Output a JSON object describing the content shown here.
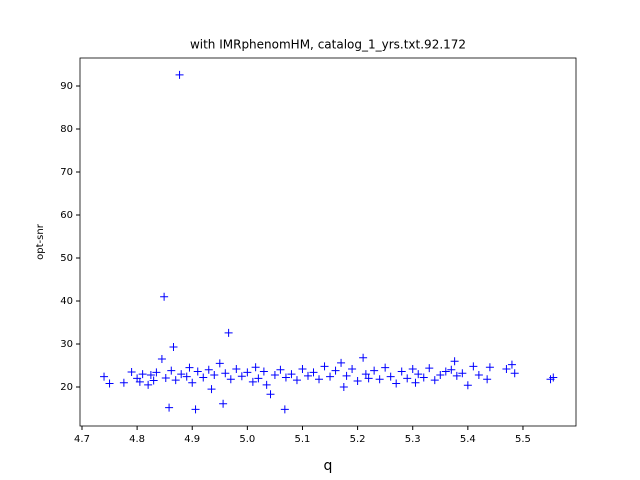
{
  "chart_data": {
    "type": "scatter",
    "title": "with IMRphenomHM, catalog_1_yrs.txt.92.172",
    "x_label": "q",
    "y_label": "opt-snr",
    "color": "#0000ff",
    "marker": "+",
    "x": [
      4.74,
      4.75,
      4.776,
      4.79,
      4.8,
      4.805,
      4.81,
      4.82,
      4.825,
      4.83,
      4.835,
      4.845,
      4.849,
      4.852,
      4.858,
      4.862,
      4.866,
      4.87,
      4.877,
      4.88,
      4.89,
      4.895,
      4.9,
      4.906,
      4.91,
      4.92,
      4.93,
      4.935,
      4.94,
      4.95,
      4.956,
      4.96,
      4.966,
      4.97,
      4.98,
      4.99,
      5.0,
      5.01,
      5.015,
      5.02,
      5.03,
      5.035,
      5.042,
      5.05,
      5.06,
      5.068,
      5.07,
      5.08,
      5.09,
      5.1,
      5.11,
      5.12,
      5.13,
      5.14,
      5.15,
      5.16,
      5.17,
      5.175,
      5.18,
      5.19,
      5.2,
      5.21,
      5.215,
      5.22,
      5.23,
      5.24,
      5.25,
      5.26,
      5.27,
      5.28,
      5.29,
      5.3,
      5.305,
      5.31,
      5.32,
      5.33,
      5.34,
      5.35,
      5.36,
      5.37,
      5.376,
      5.38,
      5.39,
      5.4,
      5.41,
      5.42,
      5.435,
      5.44,
      5.47,
      5.48,
      5.485,
      5.55,
      5.555
    ],
    "values": [
      22.4,
      20.8,
      21.0,
      23.5,
      22.0,
      21.2,
      23.0,
      20.5,
      22.8,
      21.5,
      23.4,
      26.5,
      41.0,
      22.1,
      15.2,
      23.8,
      29.3,
      21.6,
      92.6,
      23.0,
      22.4,
      24.5,
      21.0,
      14.8,
      23.6,
      22.2,
      24.0,
      19.5,
      22.8,
      25.5,
      16.1,
      23.2,
      32.6,
      21.8,
      24.2,
      22.5,
      23.4,
      21.2,
      24.6,
      22.0,
      23.6,
      20.5,
      18.3,
      22.8,
      24.0,
      14.8,
      22.2,
      23.0,
      21.6,
      24.2,
      22.6,
      23.4,
      21.8,
      24.8,
      22.4,
      23.8,
      25.6,
      20.0,
      22.6,
      24.2,
      21.4,
      26.8,
      23.0,
      22.0,
      23.8,
      21.8,
      24.5,
      22.4,
      20.8,
      23.6,
      22.0,
      24.2,
      21.0,
      23.0,
      22.2,
      24.4,
      21.6,
      22.8,
      23.6,
      24.0,
      26.0,
      22.6,
      23.2,
      20.4,
      24.8,
      22.8,
      21.8,
      24.6,
      24.2,
      25.2,
      23.2,
      21.8,
      22.2
    ],
    "xlim": [
      4.6964,
      5.5962
    ],
    "ylim": [
      10.93,
      96.51
    ],
    "xticks": [
      4.7,
      4.8,
      4.9,
      {
        "value": 5.0,
        "label": "5.0"
      },
      5.1,
      5.2,
      5.3,
      5.4,
      5.5
    ],
    "yticks": [
      20,
      30,
      40,
      50,
      60,
      70,
      80,
      90
    ]
  }
}
